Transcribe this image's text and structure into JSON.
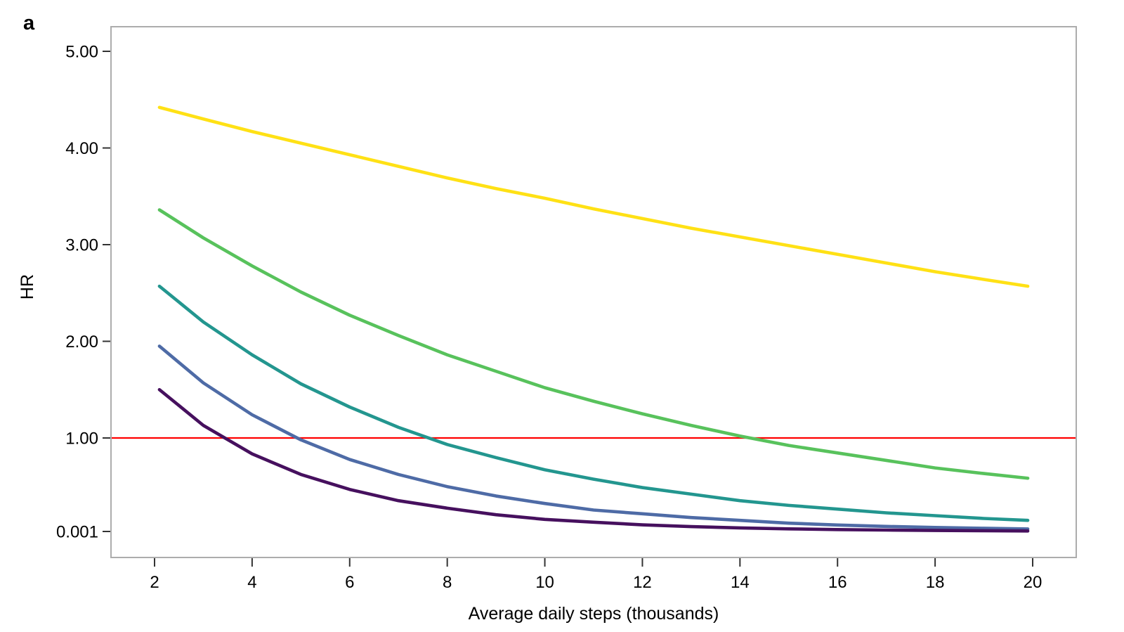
{
  "figure": {
    "panel_label": "a",
    "x_axis_label": "Average daily steps (thousands)",
    "y_axis_label": "HR"
  },
  "colors": {
    "plot_border": "#ACACAC",
    "tick_mark": "#333333",
    "reference_line": "#FF0000",
    "text": "#000000"
  },
  "chart_data": {
    "type": "line",
    "title": "",
    "xlabel": "Average daily steps (thousands)",
    "ylabel": "HR",
    "x_tick_labels": [
      "2",
      "4",
      "6",
      "8",
      "10",
      "12",
      "14",
      "16",
      "18",
      "20"
    ],
    "x_tick_values": [
      2,
      4,
      6,
      8,
      10,
      12,
      14,
      16,
      18,
      20
    ],
    "y_tick_labels": [
      "5.00",
      "4.00",
      "3.00",
      "2.00",
      "1.00",
      "0.001"
    ],
    "y_tick_values": [
      5,
      4,
      3,
      2,
      1,
      0.001
    ],
    "x_range": [
      2.1,
      19.9
    ],
    "grid": false,
    "legend": "none",
    "reference_line_y": 1.0,
    "x": [
      2.1,
      3,
      4,
      5,
      6,
      7,
      8,
      9,
      10,
      11,
      12,
      13,
      14,
      15,
      16,
      17,
      18,
      19,
      19.9
    ],
    "series": [
      {
        "name": "curve-yellow",
        "color": "#FFE115",
        "values": [
          4.42,
          4.3,
          4.17,
          4.05,
          3.93,
          3.81,
          3.69,
          3.58,
          3.48,
          3.37,
          3.27,
          3.17,
          3.08,
          2.99,
          2.9,
          2.81,
          2.72,
          2.64,
          2.57
        ]
      },
      {
        "name": "curve-green",
        "color": "#58C25C",
        "values": [
          3.36,
          3.07,
          2.78,
          2.51,
          2.27,
          2.06,
          1.86,
          1.69,
          1.52,
          1.38,
          1.25,
          1.13,
          1.02,
          0.92,
          0.84,
          0.76,
          0.68,
          0.62,
          0.57
        ]
      },
      {
        "name": "curve-teal",
        "color": "#23968F",
        "values": [
          2.57,
          2.2,
          1.86,
          1.56,
          1.32,
          1.11,
          0.93,
          0.79,
          0.66,
          0.56,
          0.47,
          0.4,
          0.33,
          0.28,
          0.24,
          0.2,
          0.17,
          0.14,
          0.12
        ]
      },
      {
        "name": "curve-blue",
        "color": "#4E6BA6",
        "values": [
          1.95,
          1.57,
          1.24,
          0.98,
          0.77,
          0.61,
          0.48,
          0.38,
          0.3,
          0.23,
          0.19,
          0.15,
          0.12,
          0.09,
          0.07,
          0.055,
          0.044,
          0.035,
          0.028
        ]
      },
      {
        "name": "curve-purple",
        "color": "#46105E",
        "values": [
          1.5,
          1.13,
          0.83,
          0.61,
          0.45,
          0.33,
          0.25,
          0.18,
          0.13,
          0.1,
          0.072,
          0.053,
          0.039,
          0.029,
          0.021,
          0.016,
          0.012,
          0.009,
          0.006
        ]
      }
    ]
  }
}
